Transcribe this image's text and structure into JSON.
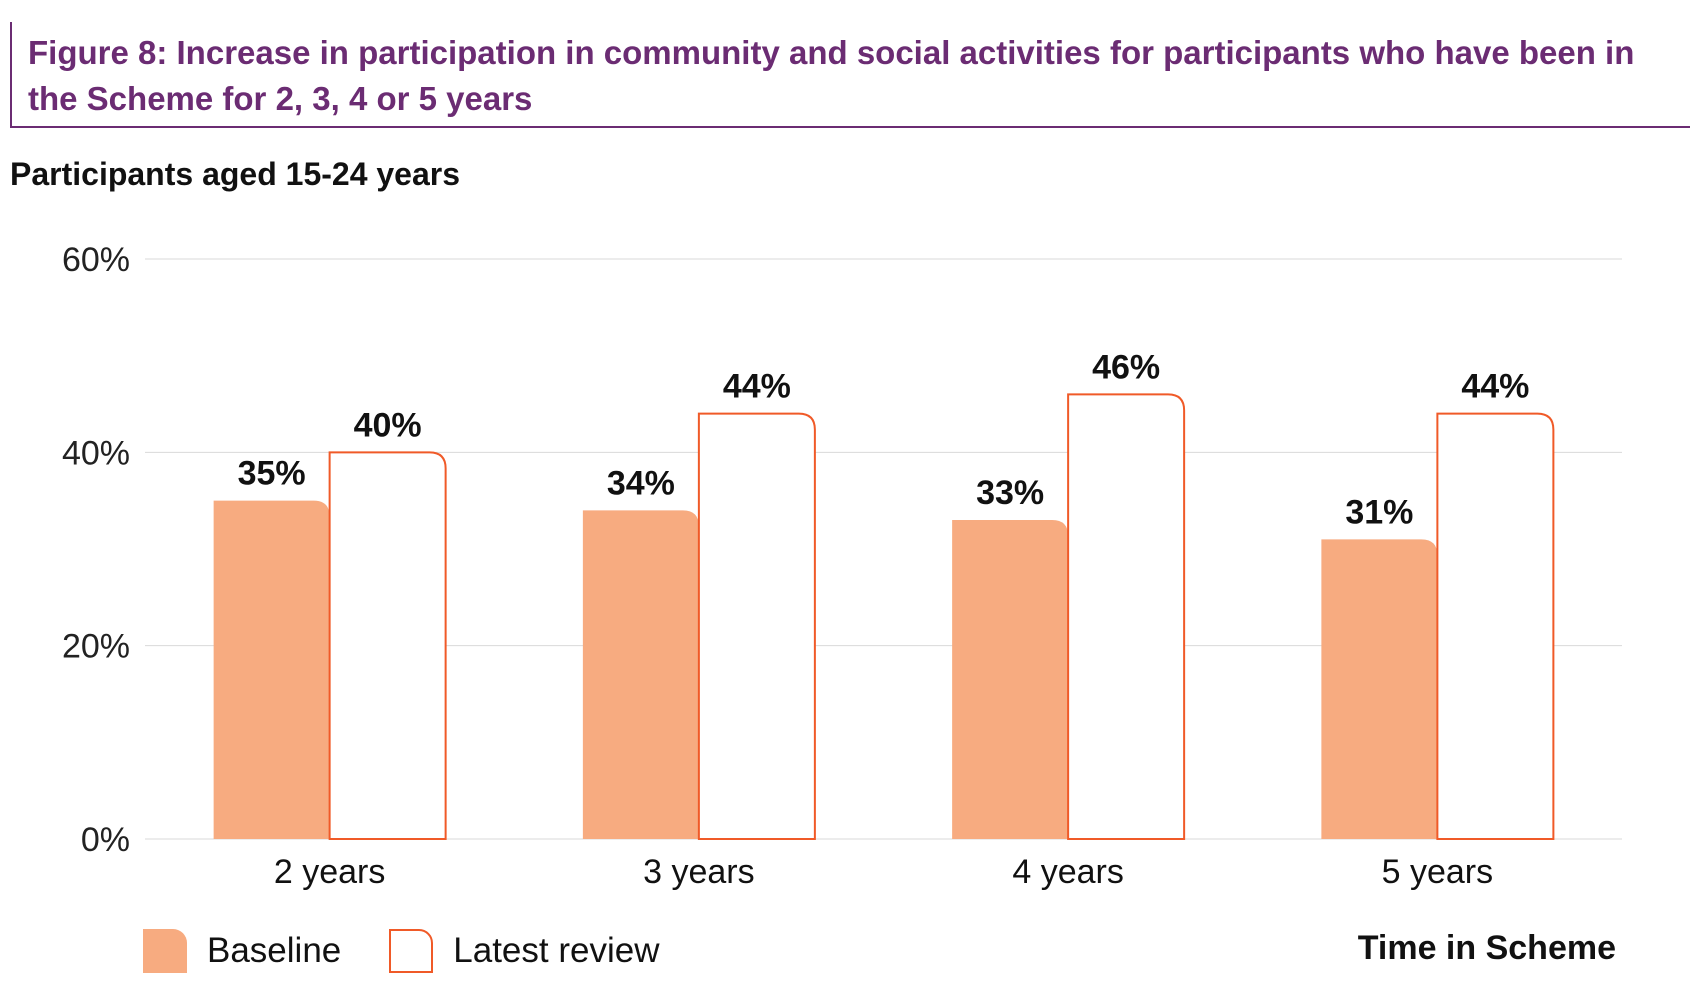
{
  "figure": {
    "title": "Figure 8: Increase in participation in community and social activities for participants who have been in the Scheme for 2, 3, 4 or 5 years"
  },
  "chart": {
    "subtitle": "Participants aged 15-24 years",
    "xaxis_title": "Time in Scheme"
  },
  "legend": {
    "baseline_label": "Baseline",
    "latest_label": "Latest review"
  },
  "colors": {
    "purple": "#6b2c73",
    "baseline": "#f7ab80",
    "latest_stroke": "#f05a28",
    "grid": "#d9d9d9"
  },
  "chart_data": {
    "type": "bar",
    "title": "Participants aged 15-24 years",
    "xlabel": "Time in Scheme",
    "ylabel": "",
    "categories": [
      "2 years",
      "3 years",
      "4 years",
      "5 years"
    ],
    "series": [
      {
        "name": "Baseline",
        "values": [
          35,
          34,
          33,
          31
        ],
        "labels": [
          "35%",
          "34%",
          "33%",
          "31%"
        ]
      },
      {
        "name": "Latest review",
        "values": [
          40,
          44,
          46,
          44
        ],
        "labels": [
          "40%",
          "44%",
          "46%",
          "44%"
        ]
      }
    ],
    "ylim": [
      0,
      60
    ],
    "yticks": [
      0,
      20,
      40,
      60
    ],
    "ytick_labels": [
      "0%",
      "20%",
      "40%",
      "60%"
    ],
    "grid": true,
    "legend_position": "bottom-left"
  }
}
